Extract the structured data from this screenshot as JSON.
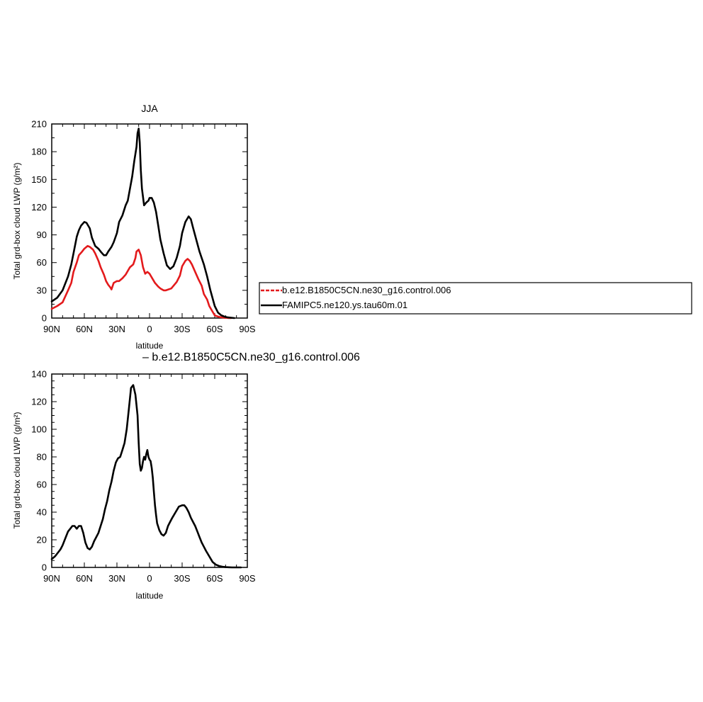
{
  "colors": {
    "control_line": "#e31a1c",
    "famip_line": "#000000",
    "diff_line": "#000000",
    "axis": "#000000"
  },
  "chart_data": [
    {
      "type": "line",
      "title": "JJA",
      "xlabel": "latitude",
      "ylabel": "Total grd-box cloud LWP (g/m²)",
      "xlim": [
        90,
        -90
      ],
      "ylim": [
        0,
        210
      ],
      "xticks": [
        {
          "v": 90,
          "label": "90N"
        },
        {
          "v": 60,
          "label": "60N"
        },
        {
          "v": 30,
          "label": "30N"
        },
        {
          "v": 0,
          "label": "0"
        },
        {
          "v": -30,
          "label": "30S"
        },
        {
          "v": -60,
          "label": "60S"
        },
        {
          "v": -90,
          "label": "90S"
        }
      ],
      "yticks": [
        0,
        30,
        60,
        90,
        120,
        150,
        180,
        210
      ],
      "legend": {
        "placement": "right",
        "entries": [
          {
            "name": "b.e12.B1850C5CN.ne30_g16.control.006",
            "series": 0,
            "dashed": true
          },
          {
            "name": "FAMIPC5.ne120.ys.tau60m.01",
            "series": 1,
            "dashed": false
          }
        ]
      },
      "series": [
        {
          "name": "b.e12.B1850C5CN.ne30_g16.control.006",
          "color": "#e31a1c",
          "x": [
            90,
            85,
            80,
            75,
            72,
            70,
            67,
            65,
            62,
            60,
            57,
            55,
            52,
            50,
            47,
            45,
            42,
            40,
            38,
            36,
            35,
            33,
            30,
            28,
            25,
            22,
            20,
            18,
            15,
            13,
            12,
            10,
            8,
            6,
            4,
            2,
            0,
            -3,
            -5,
            -8,
            -10,
            -13,
            -15,
            -20,
            -25,
            -28,
            -30,
            -33,
            -35,
            -37,
            -39,
            -42,
            -45,
            -48,
            -50,
            -53,
            -55,
            -58,
            -60,
            -62,
            -65,
            -68,
            -70,
            -73,
            -75
          ],
          "y": [
            10,
            13,
            17,
            30,
            38,
            50,
            60,
            68,
            72,
            75,
            78,
            77,
            74,
            70,
            62,
            55,
            47,
            40,
            36,
            33,
            31,
            38,
            40,
            40,
            43,
            47,
            51,
            55,
            58,
            65,
            72,
            74,
            68,
            55,
            48,
            50,
            48,
            42,
            38,
            34,
            32,
            30,
            30,
            32,
            39,
            46,
            56,
            62,
            64,
            62,
            58,
            50,
            42,
            35,
            26,
            20,
            13,
            7,
            3,
            2,
            1,
            0.5,
            0.3,
            0.1,
            0
          ]
        },
        {
          "name": "FAMIPC5.ne120.ys.tau60m.01",
          "color": "#000000",
          "x": [
            90,
            85,
            80,
            75,
            72,
            70,
            67,
            65,
            63,
            60,
            58,
            55,
            53,
            50,
            47,
            45,
            42,
            40,
            38,
            35,
            33,
            30,
            28,
            25,
            22,
            20,
            18,
            16,
            14,
            12,
            11,
            10,
            9,
            8,
            7,
            5,
            3,
            1,
            0,
            -2,
            -4,
            -6,
            -8,
            -10,
            -13,
            -16,
            -19,
            -22,
            -25,
            -28,
            -30,
            -33,
            -36,
            -38,
            -40,
            -43,
            -46,
            -50,
            -53,
            -56,
            -60,
            -63,
            -66,
            -69,
            -72,
            -75,
            -78
          ],
          "y": [
            18,
            22,
            30,
            45,
            58,
            70,
            88,
            95,
            100,
            104,
            103,
            97,
            87,
            78,
            75,
            72,
            68,
            68,
            72,
            77,
            82,
            92,
            104,
            111,
            122,
            127,
            140,
            153,
            170,
            185,
            200,
            205,
            190,
            160,
            140,
            122,
            125,
            127,
            130,
            130,
            125,
            115,
            100,
            85,
            70,
            57,
            53,
            56,
            65,
            78,
            92,
            104,
            110,
            107,
            98,
            85,
            72,
            58,
            45,
            30,
            13,
            6,
            3,
            1.5,
            0.7,
            0.3,
            0
          ]
        }
      ]
    },
    {
      "type": "line",
      "title": "– b.e12.B1850C5CN.ne30_g16.control.006",
      "xlabel": "latitude",
      "ylabel": "Total grd-box cloud LWP (g/m²)",
      "xlim": [
        90,
        -90
      ],
      "ylim": [
        0,
        140
      ],
      "xticks": [
        {
          "v": 90,
          "label": "90N"
        },
        {
          "v": 60,
          "label": "60N"
        },
        {
          "v": 30,
          "label": "30N"
        },
        {
          "v": 0,
          "label": "0"
        },
        {
          "v": -30,
          "label": "30S"
        },
        {
          "v": -60,
          "label": "60S"
        },
        {
          "v": -90,
          "label": "90S"
        }
      ],
      "yticks": [
        0,
        20,
        40,
        60,
        80,
        100,
        120,
        140
      ],
      "series": [
        {
          "color": "#000000",
          "x": [
            90,
            87,
            85,
            82,
            80,
            77,
            75,
            73,
            71,
            69,
            67,
            65,
            63,
            61,
            59,
            57,
            55,
            53,
            51,
            49,
            47,
            45,
            43,
            41,
            39,
            37,
            35,
            33,
            31,
            29,
            27,
            25,
            23,
            21,
            19,
            17,
            15,
            13,
            11,
            10,
            9,
            8,
            7,
            6,
            5,
            4,
            3,
            2,
            1,
            0,
            -1,
            -2,
            -3,
            -4,
            -5,
            -6,
            -7,
            -9,
            -11,
            -13,
            -15,
            -17,
            -19,
            -21,
            -24,
            -27,
            -30,
            -32,
            -34,
            -36,
            -38,
            -40,
            -42,
            -44,
            -46,
            -48,
            -50,
            -52,
            -55,
            -58,
            -61,
            -64,
            -67,
            -70,
            -73,
            -76,
            -80,
            -84
          ],
          "y": [
            6,
            8,
            10,
            13,
            16,
            22,
            26,
            28,
            30,
            30,
            28,
            30,
            30,
            25,
            18,
            14,
            13,
            15,
            19,
            22,
            25,
            30,
            35,
            42,
            48,
            56,
            62,
            70,
            76,
            79,
            80,
            85,
            90,
            100,
            115,
            130,
            132,
            125,
            110,
            90,
            75,
            70,
            72,
            77,
            80,
            78,
            82,
            85,
            80,
            78,
            77,
            72,
            65,
            55,
            45,
            38,
            32,
            27,
            24,
            23,
            25,
            30,
            33,
            36,
            40,
            44,
            45,
            45,
            43,
            40,
            36,
            33,
            30,
            26,
            22,
            18,
            15,
            12,
            8,
            4,
            2,
            1,
            0.5,
            0.2,
            0.1,
            0,
            0,
            0
          ]
        }
      ]
    }
  ]
}
